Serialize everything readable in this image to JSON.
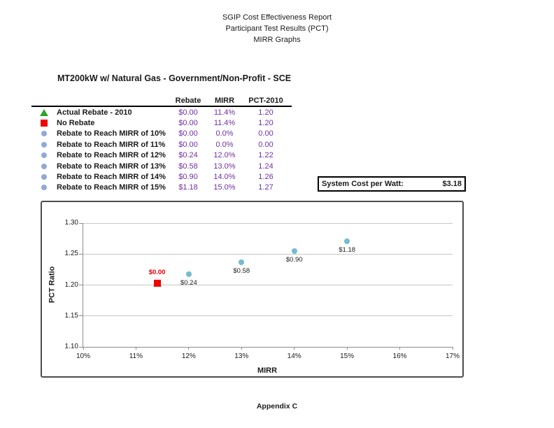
{
  "page": {
    "title_lines": [
      "SGIP Cost Effectiveness Report",
      "Participant Test Results (PCT)",
      "MIRR Graphs"
    ],
    "footer": "Appendix C"
  },
  "section": {
    "title": "MT200kW w/ Natural Gas - Government/Non-Profit - SCE"
  },
  "legend_table": {
    "headers": {
      "rebate": "Rebate",
      "mirr": "MIRR",
      "pct": "PCT-2010"
    },
    "value_color": "#7030A0",
    "rows": [
      {
        "marker": "triangle",
        "marker_color": "#2CA32C",
        "label": "Actual Rebate - 2010",
        "rebate": "$0.00",
        "mirr": "11.4%",
        "pct": "1.20"
      },
      {
        "marker": "square",
        "marker_color": "#EE0202",
        "label": "No Rebate",
        "rebate": "$0.00",
        "mirr": "11.4%",
        "pct": "1.20"
      },
      {
        "marker": "circle",
        "marker_color": "#92A9D4",
        "label": "Rebate to Reach MIRR of 10%",
        "rebate": "$0.00",
        "mirr": "0.0%",
        "pct": "0.00"
      },
      {
        "marker": "circle",
        "marker_color": "#92A9D4",
        "label": "Rebate to Reach MIRR of 11%",
        "rebate": "$0.00",
        "mirr": "0.0%",
        "pct": "0.00"
      },
      {
        "marker": "circle",
        "marker_color": "#92A9D4",
        "label": "Rebate to Reach MIRR of 12%",
        "rebate": "$0.24",
        "mirr": "12.0%",
        "pct": "1.22"
      },
      {
        "marker": "circle",
        "marker_color": "#92A9D4",
        "label": "Rebate to Reach MIRR of 13%",
        "rebate": "$0.58",
        "mirr": "13.0%",
        "pct": "1.24"
      },
      {
        "marker": "circle",
        "marker_color": "#92A9D4",
        "label": "Rebate to Reach MIRR of 14%",
        "rebate": "$0.90",
        "mirr": "14.0%",
        "pct": "1.26"
      },
      {
        "marker": "circle",
        "marker_color": "#92A9D4",
        "label": "Rebate to Reach MIRR of 15%",
        "rebate": "$1.18",
        "mirr": "15.0%",
        "pct": "1.27"
      }
    ]
  },
  "system_cost": {
    "label": "System Cost per Watt:",
    "value": "$3.18"
  },
  "chart_data": {
    "type": "scatter",
    "title": "",
    "xlabel": "MIRR",
    "ylabel": "PCT Ratio",
    "x_range": [
      10,
      17
    ],
    "y_range": [
      1.1,
      1.3
    ],
    "grid": "horizontal",
    "legend_position": "none",
    "x_ticks": [
      {
        "v": 10,
        "label": "10%"
      },
      {
        "v": 11,
        "label": "11%"
      },
      {
        "v": 12,
        "label": "12%"
      },
      {
        "v": 13,
        "label": "13%"
      },
      {
        "v": 14,
        "label": "14%"
      },
      {
        "v": 15,
        "label": "15%"
      },
      {
        "v": 16,
        "label": "16%"
      },
      {
        "v": 17,
        "label": "17%"
      }
    ],
    "y_ticks": [
      {
        "v": 1.1,
        "label": "1.10"
      },
      {
        "v": 1.15,
        "label": "1.15"
      },
      {
        "v": 1.2,
        "label": "1.20"
      },
      {
        "v": 1.25,
        "label": "1.25"
      },
      {
        "v": 1.3,
        "label": "1.30"
      }
    ],
    "series": [
      {
        "name": "Rebate to Reach MIRR",
        "marker": "circle",
        "color": "#75BAD0",
        "label_pos": "below",
        "label_color": "#1a1a1a",
        "label_bold": false,
        "points": [
          {
            "x": 12.0,
            "y": 1.217,
            "label": "$0.24"
          },
          {
            "x": 13.0,
            "y": 1.237,
            "label": "$0.58"
          },
          {
            "x": 14.0,
            "y": 1.255,
            "label": "$0.90"
          },
          {
            "x": 15.0,
            "y": 1.271,
            "label": "$1.18"
          }
        ]
      },
      {
        "name": "Actual Rebate - 2010",
        "marker": "triangle",
        "color": "#2CA32C",
        "label_pos": "none",
        "label_color": "#1a1a1a",
        "label_bold": false,
        "points": [
          {
            "x": 11.4,
            "y": 1.203
          }
        ]
      },
      {
        "name": "No Rebate",
        "marker": "square",
        "color": "#EE0202",
        "label_pos": "above",
        "label_color": "#E00000",
        "label_bold": true,
        "points": [
          {
            "x": 11.4,
            "y": 1.203,
            "label": "$0.00"
          }
        ]
      }
    ]
  }
}
